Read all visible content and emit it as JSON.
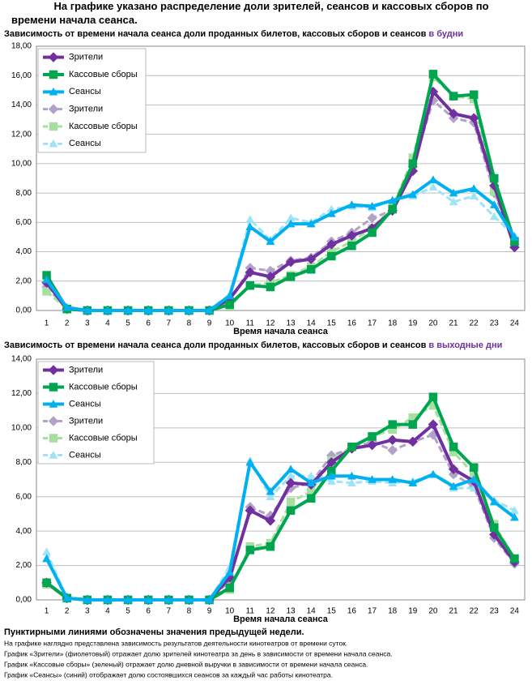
{
  "title": "На графике указано распределение доли зрителей, сеансов и кассовых сборов по времени начала сеанса.",
  "notes": {
    "heading": "Пунктирными линиями обозначены значения предыдущей недели.",
    "lines": [
      "На графике наглядно представлена зависимость результатов деятельности кинотеатров от времени суток.",
      "График «Зрители» (фиолетовый)  отражает долю зрителей кинотеатра за день в зависимости от времени  начала сеанса.",
      "График «Кассовые сборы» (зеленый) отражает долю дневной выручки в зависимости от времени начала сеанса.",
      "График «Сеансы» (синий) отображает долю состоявшихся сеансов  за каждый час работы кинотеатра."
    ]
  },
  "chart_data": [
    {
      "type": "line",
      "subtitle": "Зависимость от времени начала сеанса доли проданных билетов, кассовых сборов и сеансов",
      "subtitle_highlight": "в будни",
      "x_label": "Время начала сеанса",
      "categories": [
        "1",
        "2",
        "3",
        "4",
        "5",
        "6",
        "7",
        "8",
        "9",
        "10",
        "11",
        "12",
        "13",
        "14",
        "15",
        "16",
        "17",
        "18",
        "19",
        "20",
        "21",
        "22",
        "23",
        "24"
      ],
      "ylim": [
        0,
        18
      ],
      "yticks": [
        {
          "value": 0,
          "label": "0,00"
        },
        {
          "value": 2,
          "label": "2,00"
        },
        {
          "value": 4,
          "label": "4,00"
        },
        {
          "value": 6,
          "label": "6,00"
        },
        {
          "value": 8,
          "label": "8,00"
        },
        {
          "value": 10,
          "label": "10,00"
        },
        {
          "value": 12,
          "label": "12,00"
        },
        {
          "value": 14,
          "label": "14,00"
        },
        {
          "value": 16,
          "label": "16,00"
        },
        {
          "value": 18,
          "label": "18,00"
        }
      ],
      "grid": true,
      "series": [
        {
          "name": "Зрители",
          "color": "#7030a0",
          "marker": "diamond",
          "dashed": false,
          "values": [
            1.9,
            0.1,
            0,
            0,
            0,
            0,
            0,
            0,
            0,
            0.8,
            2.6,
            2.3,
            3.3,
            3.5,
            4.5,
            5.1,
            5.6,
            6.8,
            9.5,
            14.9,
            13.4,
            13.1,
            8.5,
            4.3
          ]
        },
        {
          "name": "Кассовые сборы",
          "color": "#00a550",
          "marker": "square",
          "dashed": false,
          "values": [
            2.4,
            0.1,
            0,
            0,
            0,
            0,
            0,
            0,
            0,
            0.4,
            1.7,
            1.6,
            2.3,
            2.8,
            3.7,
            4.4,
            5.3,
            6.9,
            10.0,
            16.1,
            14.6,
            14.7,
            9.0,
            4.7
          ]
        },
        {
          "name": "Сеансы",
          "color": "#00b0f0",
          "marker": "triangle",
          "dashed": false,
          "values": [
            2.1,
            0.2,
            0,
            0,
            0,
            0,
            0,
            0,
            0,
            1.0,
            5.7,
            4.7,
            5.9,
            5.9,
            6.6,
            7.2,
            7.1,
            7.5,
            7.9,
            8.9,
            8.0,
            8.3,
            7.2,
            5.0
          ]
        },
        {
          "name": "Зрители",
          "color": "#b3a2c7",
          "marker": "diamond",
          "dashed": true,
          "values": [
            1.6,
            0.1,
            0,
            0,
            0,
            0,
            0,
            0,
            0,
            0.6,
            2.9,
            2.7,
            3.4,
            3.6,
            4.7,
            5.3,
            6.3,
            6.8,
            9.8,
            14.3,
            13.1,
            12.8,
            8.0,
            4.5
          ]
        },
        {
          "name": "Кассовые сборы",
          "color": "#a6dfa0",
          "marker": "square",
          "dashed": true,
          "values": [
            1.3,
            0.1,
            0,
            0,
            0,
            0,
            0,
            0,
            0,
            0.3,
            1.7,
            1.9,
            2.4,
            3.0,
            4.0,
            4.7,
            5.6,
            7.0,
            10.4,
            15.9,
            14.6,
            14.4,
            8.1,
            4.7
          ]
        },
        {
          "name": "Сеансы",
          "color": "#9fe3f8",
          "marker": "triangle",
          "dashed": true,
          "values": [
            2.0,
            0.2,
            0,
            0,
            0,
            0,
            0,
            0,
            0,
            1.1,
            6.2,
            4.8,
            6.3,
            6.0,
            6.9,
            7.1,
            7.0,
            7.5,
            7.8,
            8.4,
            7.4,
            7.8,
            6.4,
            5.1
          ]
        }
      ]
    },
    {
      "type": "line",
      "subtitle": "Зависимость от времени начала сеанса доли проданных билетов, кассовых сборов и сеансов",
      "subtitle_highlight": "в выходные дни",
      "x_label": "Время начала сеанса",
      "categories": [
        "1",
        "2",
        "3",
        "4",
        "5",
        "6",
        "7",
        "8",
        "9",
        "10",
        "11",
        "12",
        "13",
        "14",
        "15",
        "16",
        "17",
        "18",
        "19",
        "20",
        "21",
        "22",
        "23",
        "24"
      ],
      "ylim": [
        0,
        14
      ],
      "yticks": [
        {
          "value": 0,
          "label": "0,00"
        },
        {
          "value": 2,
          "label": "2,00"
        },
        {
          "value": 4,
          "label": "4,00"
        },
        {
          "value": 6,
          "label": "6,00"
        },
        {
          "value": 8,
          "label": "8,00"
        },
        {
          "value": 10,
          "label": "10,00"
        },
        {
          "value": 12,
          "label": "12,00"
        },
        {
          "value": 14,
          "label": "14,00"
        }
      ],
      "grid": true,
      "series": [
        {
          "name": "Зрители",
          "color": "#7030a0",
          "marker": "diamond",
          "dashed": false,
          "values": [
            1.0,
            0.1,
            0,
            0,
            0,
            0,
            0,
            0,
            0,
            1.3,
            5.2,
            4.6,
            6.8,
            6.7,
            8.0,
            8.8,
            9.0,
            9.3,
            9.2,
            10.2,
            7.6,
            6.9,
            3.8,
            2.2
          ]
        },
        {
          "name": "Кассовые сборы",
          "color": "#00a550",
          "marker": "square",
          "dashed": false,
          "values": [
            1.0,
            0.1,
            0,
            0,
            0,
            0,
            0,
            0,
            0,
            0.7,
            2.9,
            3.1,
            5.2,
            5.9,
            7.5,
            8.9,
            9.5,
            10.2,
            10.2,
            11.8,
            8.9,
            7.7,
            4.2,
            2.4
          ]
        },
        {
          "name": "Сеансы",
          "color": "#00b0f0",
          "marker": "triangle",
          "dashed": false,
          "values": [
            2.4,
            0.1,
            0,
            0,
            0,
            0,
            0,
            0,
            0,
            1.6,
            8.0,
            6.3,
            7.6,
            6.8,
            7.2,
            7.2,
            7.0,
            7.0,
            6.8,
            7.3,
            6.6,
            7.0,
            5.7,
            4.8
          ]
        },
        {
          "name": "Зрители",
          "color": "#b3a2c7",
          "marker": "diamond",
          "dashed": true,
          "values": [
            1.0,
            0.1,
            0,
            0,
            0,
            0,
            0,
            0,
            0,
            1.1,
            5.4,
            4.9,
            6.5,
            6.8,
            8.4,
            8.8,
            9.2,
            8.7,
            9.2,
            9.6,
            7.3,
            6.6,
            3.6,
            2.1
          ]
        },
        {
          "name": "Кассовые сборы",
          "color": "#a6dfa0",
          "marker": "square",
          "dashed": true,
          "values": [
            0.9,
            0.1,
            0,
            0,
            0,
            0,
            0,
            0,
            0,
            0.6,
            3.1,
            3.3,
            5.7,
            6.3,
            8.1,
            8.9,
            9.5,
            9.9,
            10.6,
            11.3,
            8.6,
            7.3,
            4.4,
            2.4
          ]
        },
        {
          "name": "Сеансы",
          "color": "#9fe3f8",
          "marker": "triangle",
          "dashed": true,
          "values": [
            2.8,
            0.1,
            0,
            0,
            0,
            0,
            0,
            0,
            0,
            1.9,
            8.1,
            6.0,
            7.2,
            7.2,
            6.9,
            6.8,
            6.9,
            6.8,
            6.9,
            7.3,
            6.5,
            6.5,
            5.8,
            5.2
          ]
        }
      ]
    }
  ]
}
